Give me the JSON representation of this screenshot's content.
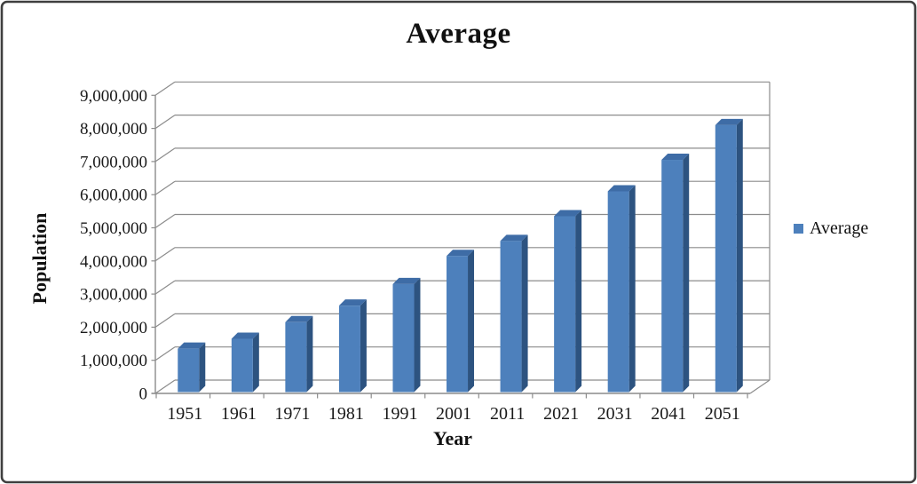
{
  "window": {
    "background": "#ffffff",
    "border_color": "#3f3f3f"
  },
  "chart_data": {
    "type": "bar",
    "style": "3d-column",
    "title": "Average",
    "xlabel": "Year",
    "ylabel": "Population",
    "categories": [
      "1951",
      "1961",
      "1971",
      "1981",
      "1991",
      "2001",
      "2011",
      "2021",
      "2031",
      "2041",
      "2051"
    ],
    "series": [
      {
        "name": "Average",
        "values": [
          1350000,
          1650000,
          2150000,
          2650000,
          3300000,
          4150000,
          4600000,
          5350000,
          6100000,
          7050000,
          8100000
        ]
      }
    ],
    "ylim": [
      0,
      9000000
    ],
    "ytick_step": 1000000,
    "ytick_format": "comma",
    "grid": true,
    "legend_position": "right",
    "colors": {
      "bar_front": "#4d80bc",
      "bar_top": "#3e6ca6",
      "bar_side": "#2d5380",
      "gridline": "#8c8c8c",
      "axis": "#8c8c8c",
      "text": "#1a1a1a",
      "border": "#3f3f3f"
    }
  }
}
